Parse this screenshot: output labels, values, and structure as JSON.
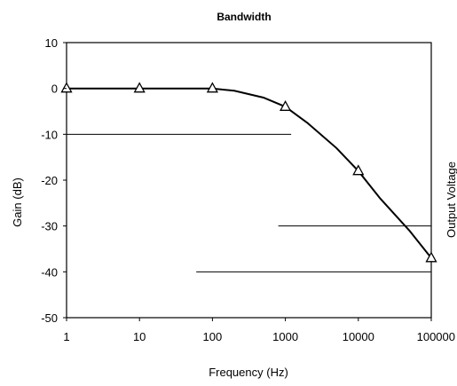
{
  "chart_data": {
    "type": "line",
    "title": "Bandwidth",
    "xlabel": "Frequency (Hz)",
    "ylabel": "Gain (dB)",
    "ylabel_right": "Output Voltage",
    "x_scale": "log",
    "xlim": [
      1,
      100000
    ],
    "ylim": [
      -50,
      10
    ],
    "x_ticks": [
      1,
      10,
      100,
      1000,
      10000,
      100000
    ],
    "x_tick_labels": [
      "1",
      "10",
      "100",
      "1000",
      "10000",
      "100000"
    ],
    "y_ticks": [
      10,
      0,
      -10,
      -20,
      -30,
      -40,
      -50
    ],
    "y_tick_labels": [
      "10",
      "0",
      "-10",
      "-20",
      "-30",
      "-40",
      "-50"
    ],
    "grid": false,
    "series": [
      {
        "marker": "triangle",
        "x": [
          1,
          10,
          100,
          1000,
          10000,
          100000
        ],
        "y": [
          0,
          0,
          0,
          -4,
          -18,
          -37
        ]
      }
    ],
    "curve": {
      "x": [
        1,
        10,
        100,
        200,
        500,
        1000,
        2000,
        5000,
        10000,
        20000,
        50000,
        100000
      ],
      "y": [
        0,
        0,
        0,
        -0.5,
        -2,
        -4,
        -7.5,
        -13,
        -18,
        -24,
        -31,
        -37
      ]
    },
    "reference_lines": [
      {
        "y": -10,
        "x_from": 1,
        "x_to": 1200
      },
      {
        "y": -30,
        "x_from": 800,
        "x_to": 100000
      },
      {
        "y": -40,
        "x_from": 60,
        "x_to": 100000
      }
    ]
  }
}
